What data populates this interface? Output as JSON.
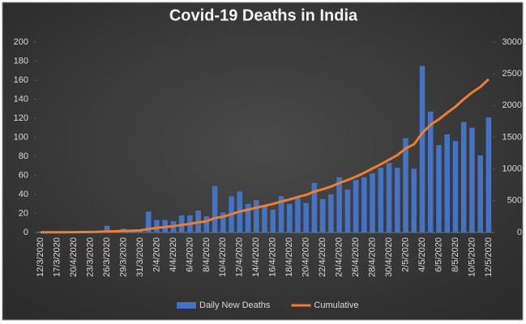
{
  "chart_data": {
    "type": "bar_line",
    "title": "Covid-19 Deaths in India",
    "categories": [
      "12/3/2020",
      null,
      "17/3/2020",
      null,
      "20/4/2020",
      null,
      "23/3/2020",
      null,
      "26/3/2020",
      null,
      "29/3/2020",
      null,
      "31/3/2020",
      null,
      "2/4/2020",
      null,
      "4/4/2020",
      null,
      "6/4/2020",
      null,
      "8/4/2020",
      null,
      "10/4/2020",
      null,
      "12/4/2020",
      null,
      "14/4/2020",
      null,
      "16/4/2020",
      null,
      "18/4/2020",
      null,
      "20/4/2020",
      null,
      "22/4/2020",
      null,
      "24/4/2020",
      null,
      "26/4/2020",
      null,
      "28/4/2020",
      null,
      "30/4/2020",
      null,
      "2/5/2020",
      null,
      "4/5/2020",
      null,
      "6/5/2020",
      null,
      "8/5/2020",
      null,
      "10/5/2020",
      null,
      "12/5/2020"
    ],
    "series": [
      {
        "name": "Daily New Deaths",
        "color": "#4472c4",
        "values": [
          1,
          0,
          0,
          1,
          1,
          0,
          1,
          2,
          7,
          2,
          4,
          3,
          2,
          22,
          13,
          13,
          12,
          18,
          18,
          23,
          17,
          49,
          21,
          38,
          43,
          30,
          34,
          28,
          24,
          38,
          30,
          36,
          31,
          52,
          35,
          40,
          58,
          45,
          55,
          58,
          62,
          68,
          73,
          68,
          99,
          67,
          175,
          127,
          92,
          103,
          96,
          116,
          110,
          81,
          121
        ]
      },
      {
        "name": "Cumulative",
        "color": "#ed7d31",
        "axis": "y2",
        "values": [
          2,
          2,
          3,
          4,
          5,
          6,
          8,
          10,
          17,
          19,
          24,
          27,
          32,
          56,
          72,
          86,
          99,
          117,
          135,
          160,
          178,
          227,
          249,
          288,
          331,
          358,
          392,
          420,
          450,
          488,
          520,
          559,
          592,
          645,
          681,
          723,
          779,
          826,
          880,
          939,
          1008,
          1075,
          1147,
          1218,
          1323,
          1389,
          1568,
          1694,
          1783,
          1886,
          1981,
          2101,
          2206,
          2293,
          2415
        ]
      }
    ],
    "ylim": [
      0,
      200
    ],
    "yticks": [
      0,
      20,
      40,
      60,
      80,
      100,
      120,
      140,
      160,
      180,
      200
    ],
    "y2lim": [
      0,
      3000
    ],
    "y2ticks": [
      0,
      500,
      1000,
      1500,
      2000,
      2500,
      3000
    ],
    "legend": "bottom"
  }
}
